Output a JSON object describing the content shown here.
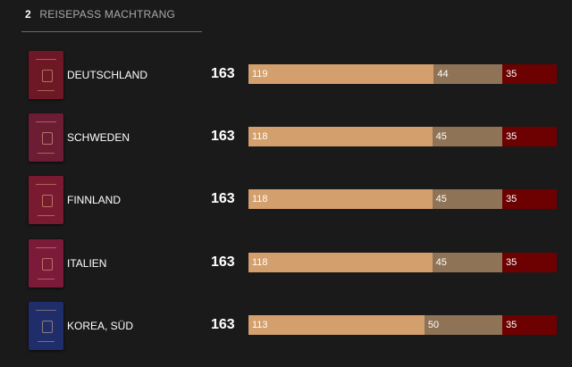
{
  "header": {
    "rank": "2",
    "title": "REISEPASS MACHTRANG"
  },
  "colors": {
    "background": "#1b1a1a",
    "visa_free": "#d39f6c",
    "visa_on_arrival": "#8f7356",
    "visa_required": "#6d0000"
  },
  "rows": [
    {
      "country": "DEUTSCHLAND",
      "total": "163",
      "visa_free": 119,
      "visa_on_arrival": 44,
      "visa_required": 35,
      "passport_color": "#6e1826",
      "passport_icon": "germany-passport-icon"
    },
    {
      "country": "SCHWEDEN",
      "total": "163",
      "visa_free": 118,
      "visa_on_arrival": 45,
      "visa_required": 35,
      "passport_color": "#6c1d34",
      "passport_icon": "sweden-passport-icon"
    },
    {
      "country": "FINNLAND",
      "total": "163",
      "visa_free": 118,
      "visa_on_arrival": 45,
      "visa_required": 35,
      "passport_color": "#7a1a30",
      "passport_icon": "finland-passport-icon"
    },
    {
      "country": "ITALIEN",
      "total": "163",
      "visa_free": 118,
      "visa_on_arrival": 45,
      "visa_required": 35,
      "passport_color": "#7d1a3a",
      "passport_icon": "italy-passport-icon"
    },
    {
      "country": "KOREA, SÜD",
      "total": "163",
      "visa_free": 113,
      "visa_on_arrival": 50,
      "visa_required": 35,
      "passport_color": "#1f2d6b",
      "passport_icon": "korea-passport-icon"
    }
  ]
}
